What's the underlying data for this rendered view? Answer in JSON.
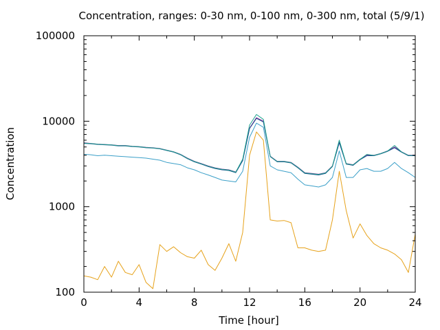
{
  "chart_data": {
    "type": "line",
    "title": "Concentration, ranges: 0-30 nm, 0-100 nm, 0-300 nm, total (5/9/1)",
    "xlabel": "Time [hour]",
    "ylabel": "Concentration",
    "xlim": [
      0,
      24
    ],
    "ylim": [
      100,
      100000
    ],
    "yscale": "log",
    "x_ticks": [
      0,
      4,
      8,
      12,
      16,
      20,
      24
    ],
    "y_ticks": [
      100,
      1000,
      10000,
      100000
    ],
    "y_tick_labels": [
      "100",
      "1000",
      "10000",
      "100000"
    ],
    "grid": false,
    "legend": "none",
    "x": [
      0,
      0.5,
      1,
      1.5,
      2,
      2.5,
      3,
      3.5,
      4,
      4.5,
      5,
      5.5,
      6,
      6.5,
      7,
      7.5,
      8,
      8.5,
      9,
      9.5,
      10,
      10.5,
      11,
      11.5,
      12,
      12.5,
      13,
      13.5,
      14,
      14.5,
      15,
      15.5,
      16,
      16.5,
      17,
      17.5,
      18,
      18.5,
      19,
      19.5,
      20,
      20.5,
      21,
      21.5,
      22,
      22.5,
      23,
      23.5,
      24
    ],
    "series": [
      {
        "color": "#e6a118",
        "values": [
          155,
          150,
          140,
          200,
          150,
          230,
          170,
          160,
          210,
          130,
          110,
          360,
          300,
          340,
          290,
          260,
          250,
          310,
          210,
          180,
          250,
          370,
          230,
          500,
          4000,
          7500,
          6000,
          700,
          680,
          690,
          650,
          330,
          330,
          310,
          300,
          310,
          700,
          2600,
          900,
          430,
          630,
          460,
          370,
          330,
          310,
          280,
          240,
          170,
          480
        ]
      },
      {
        "color": "#3a9fc8",
        "values": [
          4100,
          4050,
          3950,
          4000,
          3950,
          3900,
          3850,
          3800,
          3750,
          3700,
          3600,
          3500,
          3300,
          3200,
          3100,
          2850,
          2700,
          2500,
          2350,
          2200,
          2050,
          2000,
          1950,
          2600,
          6500,
          9500,
          8500,
          3000,
          2700,
          2600,
          2500,
          2100,
          1800,
          1750,
          1700,
          1800,
          2200,
          4500,
          2200,
          2200,
          2700,
          2800,
          2600,
          2600,
          2800,
          3300,
          2800,
          2500,
          2200
        ]
      },
      {
        "color": "#8a2a9c",
        "values": [
          5600,
          5500,
          5400,
          5350,
          5300,
          5200,
          5200,
          5100,
          5050,
          4950,
          4900,
          4800,
          4600,
          4400,
          4100,
          3700,
          3400,
          3200,
          3000,
          2850,
          2750,
          2700,
          2550,
          3500,
          8300,
          11000,
          10000,
          3900,
          3400,
          3400,
          3300,
          2900,
          2500,
          2450,
          2400,
          2500,
          3000,
          5700,
          3200,
          3100,
          3600,
          4000,
          4000,
          4200,
          4500,
          5000,
          4400,
          4000,
          4000
        ]
      },
      {
        "color": "#1a4f8e",
        "values": [
          5500,
          5450,
          5350,
          5300,
          5250,
          5150,
          5150,
          5050,
          5000,
          4900,
          4850,
          4750,
          4550,
          4350,
          4050,
          3650,
          3350,
          3150,
          2950,
          2800,
          2700,
          2650,
          2500,
          3450,
          8200,
          10800,
          9800,
          3850,
          3350,
          3350,
          3250,
          2850,
          2450,
          2400,
          2350,
          2450,
          2950,
          5600,
          3150,
          3050,
          3550,
          3950,
          3950,
          4150,
          4450,
          4900,
          4350,
          3950,
          3950
        ]
      },
      {
        "color": "#1aa08c",
        "values": [
          5550,
          5480,
          5380,
          5330,
          5280,
          5180,
          5180,
          5080,
          5030,
          4930,
          4880,
          4780,
          4580,
          4380,
          4080,
          3680,
          3380,
          3180,
          2980,
          2830,
          2730,
          2680,
          2530,
          3600,
          9000,
          12000,
          10500,
          3880,
          3380,
          3380,
          3280,
          2880,
          2480,
          2430,
          2380,
          2480,
          2980,
          6000,
          3180,
          3080,
          3580,
          4100,
          3980,
          4180,
          4480,
          5200,
          4380,
          3980,
          3980
        ]
      }
    ]
  }
}
